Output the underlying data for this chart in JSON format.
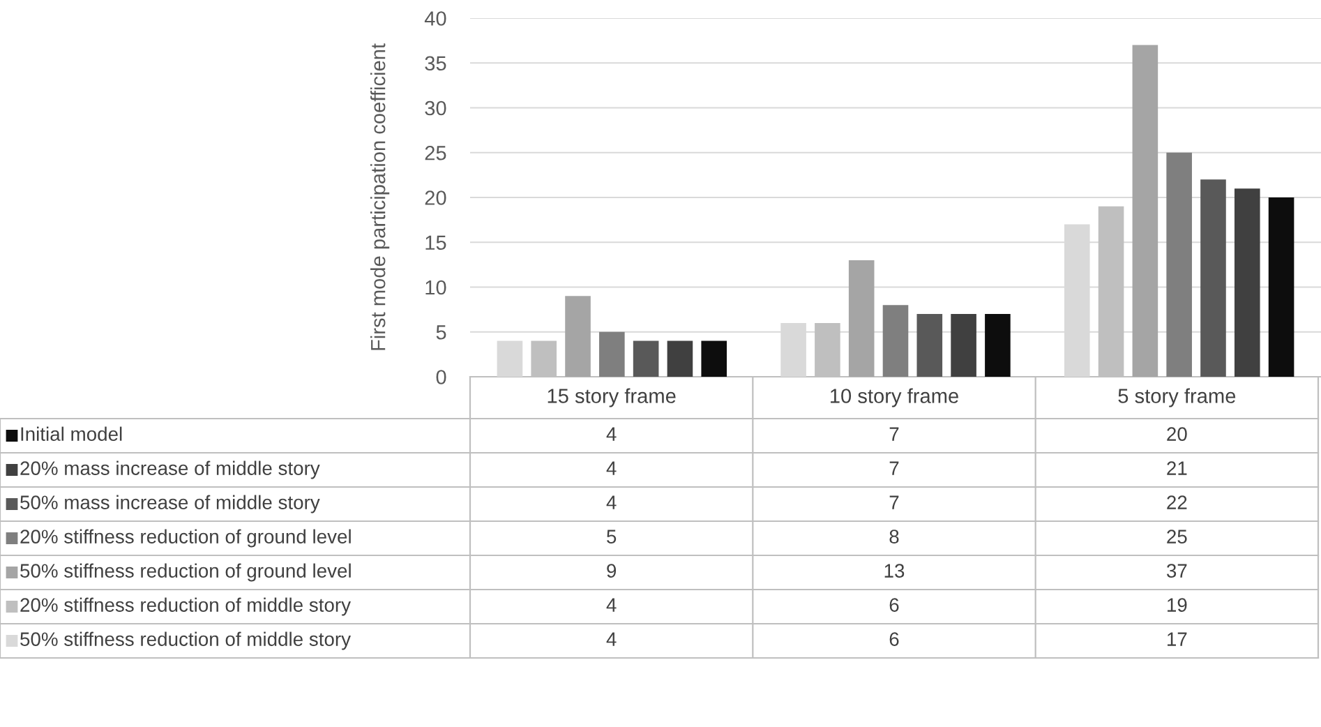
{
  "chart_data": {
    "type": "bar",
    "ylabel": "First mode participation coefficient",
    "categories": [
      "15 story frame",
      "10 story frame",
      "5 story frame"
    ],
    "series": [
      {
        "name": "Initial model",
        "color": "#0d0d0d",
        "values": [
          4,
          7,
          20
        ]
      },
      {
        "name": "20% mass increase of middle story",
        "color": "#404040",
        "values": [
          4,
          7,
          21
        ]
      },
      {
        "name": "50% mass increase of middle story",
        "color": "#595959",
        "values": [
          4,
          7,
          22
        ]
      },
      {
        "name": "20% stiffness reduction of ground level",
        "color": "#7f7f7f",
        "values": [
          5,
          8,
          25
        ]
      },
      {
        "name": "50% stiffness reduction of ground level",
        "color": "#a5a5a5",
        "values": [
          9,
          13,
          37
        ]
      },
      {
        "name": "20% stiffness reduction of middle story",
        "color": "#bfbfbf",
        "values": [
          4,
          6,
          19
        ]
      },
      {
        "name": "50% stiffness reduction of middle story",
        "color": "#d9d9d9",
        "values": [
          4,
          6,
          17
        ]
      }
    ],
    "ylim": [
      0,
      40
    ],
    "yticks": [
      0,
      5,
      10,
      15,
      20,
      25,
      30,
      35,
      40
    ],
    "grid": "y",
    "legend": "bottom",
    "data_labels": true
  }
}
